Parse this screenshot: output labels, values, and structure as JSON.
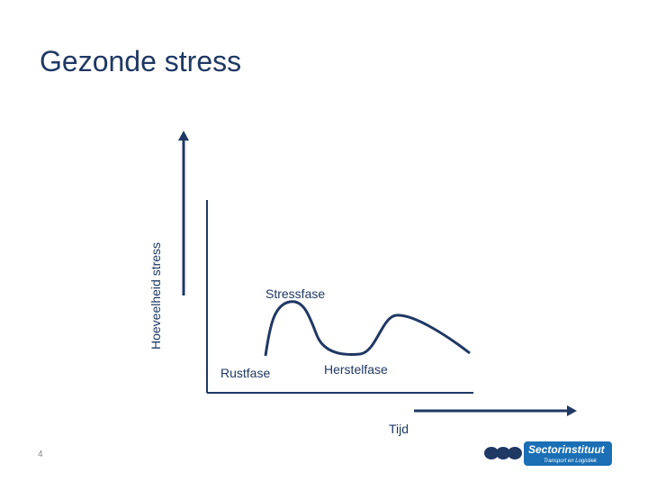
{
  "header": {
    "title": "Gezonde stress"
  },
  "diagram": {
    "y_axis_label": "Hoeveelheid stress",
    "x_axis_label": "Tijd",
    "phases": [
      "Rustfase",
      "Stressfase",
      "Herstelfase"
    ]
  },
  "footer": {
    "page_number": "4",
    "logo_name": "Sectorinstituut",
    "logo_tagline": "Transport en Logistiek"
  }
}
